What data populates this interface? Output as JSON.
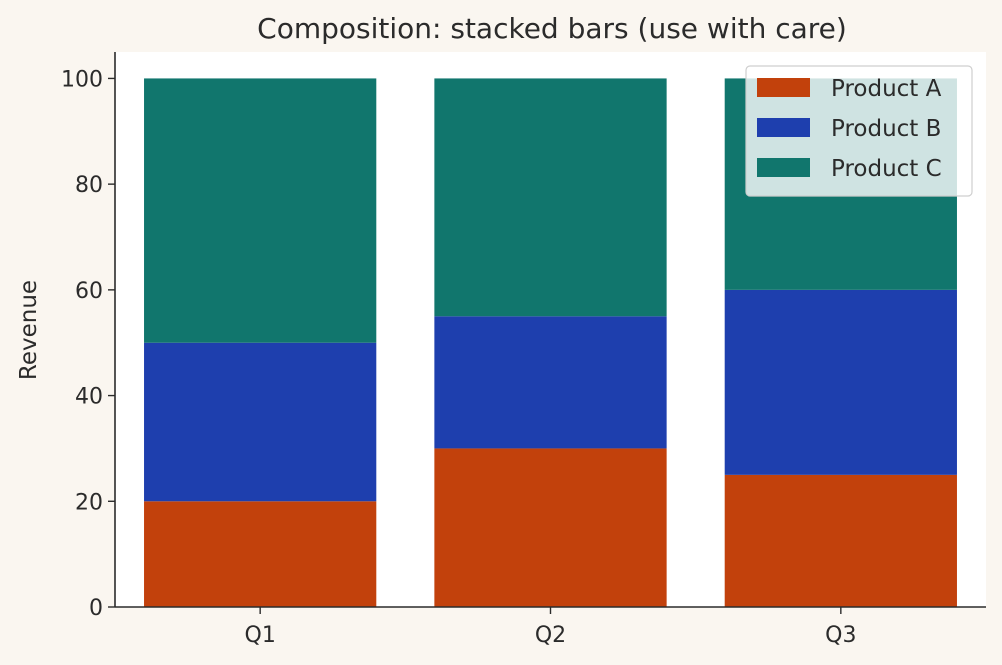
{
  "chart_data": {
    "type": "bar",
    "stacked": true,
    "title": "Composition: stacked bars (use with care)",
    "xlabel": "",
    "ylabel": "Revenue",
    "categories": [
      "Q1",
      "Q2",
      "Q3"
    ],
    "series": [
      {
        "name": "Product A",
        "values": [
          20,
          30,
          25
        ],
        "color": "#c2410c"
      },
      {
        "name": "Product B",
        "values": [
          30,
          25,
          35
        ],
        "color": "#1e3fae"
      },
      {
        "name": "Product C",
        "values": [
          50,
          45,
          40
        ],
        "color": "#11766d"
      }
    ],
    "ylim": [
      0,
      105
    ],
    "yticks": [
      0,
      20,
      40,
      60,
      80,
      100
    ],
    "grid": false,
    "legend_position": "top-right",
    "colors": {
      "background": "#faf6f0",
      "plot_area": "#ffffff",
      "axis": "#2b2b2b"
    }
  }
}
